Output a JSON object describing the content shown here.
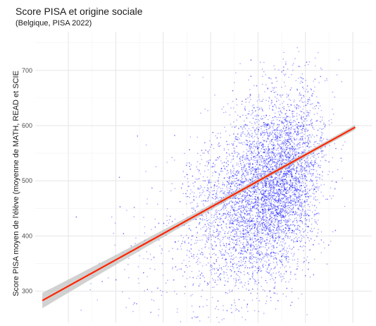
{
  "chart_data": {
    "type": "scatter",
    "title": "Score PISA et origine sociale",
    "subtitle": "(Belgique, PISA 2022)",
    "ylabel": "Score PISA moyen de l'élève (moyenne de MATH, READ et SCIE",
    "xlabel": "",
    "yticks": [
      300,
      400,
      500,
      600,
      700
    ],
    "ylim": [
      242,
      770
    ],
    "xlim": [
      -4.6,
      2.5
    ],
    "grid": true,
    "legend": "none",
    "colors": {
      "points": "#0000ff",
      "line": "#ff2400",
      "band": "#bdbdbd"
    },
    "series": [
      {
        "kind": "points",
        "approx_count": 7000,
        "center": [
          1.0,
          560
        ],
        "spread": [
          1.0,
          80
        ]
      },
      {
        "kind": "linear-fit",
        "x": [
          -4.45,
          2.15
        ],
        "y": [
          283,
          597
        ]
      }
    ]
  }
}
